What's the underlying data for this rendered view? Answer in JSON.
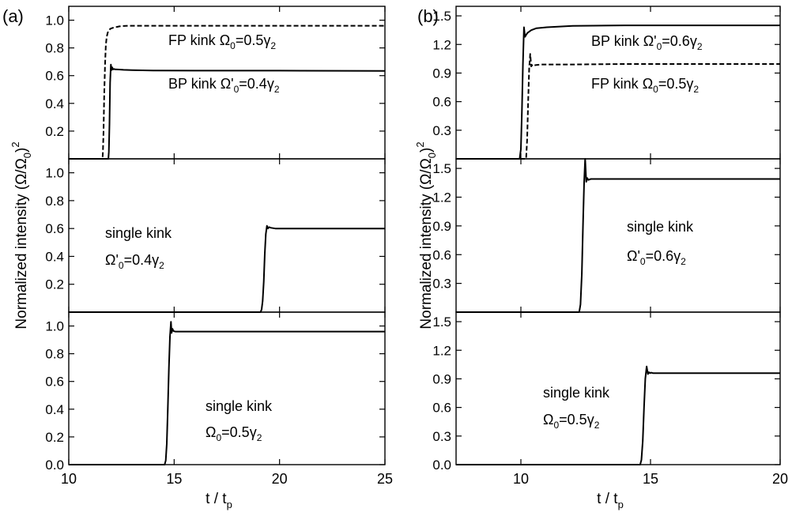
{
  "chart_data": [
    {
      "panel_label": "(a)",
      "type": "line",
      "xlabel": "t / t",
      "xlabel_sub": "p",
      "ylabel": "Normalized intensity (Ω/Ω",
      "ylabel_sub": "0",
      "ylabel_tail": ")",
      "ylabel_sup": "2",
      "xlim": [
        10,
        25
      ],
      "xticks": [
        "10",
        "15",
        "20",
        "25"
      ],
      "subplots": [
        {
          "ylim": [
            0,
            1.1
          ],
          "yticks": [
            "0.2",
            "0.4",
            "0.6",
            "0.8",
            "1.0"
          ],
          "annotations": [
            {
              "base": "FP kink Ω",
              "sub": "0",
              "rest": "=0.5γ",
              "sub2": "2"
            },
            {
              "base": "BP kink Ω'",
              "sub": "0",
              "rest": "=0.4γ",
              "sub2": "2"
            }
          ],
          "series": [
            {
              "style": "dash",
              "x": [
                10,
                11.6,
                11.62,
                11.65,
                11.68,
                11.72,
                11.76,
                11.8,
                11.85,
                11.9,
                11.95,
                12.0,
                12.1,
                12.2,
                12.3,
                12.4,
                12.6,
                12.8,
                13.0,
                14.0,
                25
              ],
              "y": [
                0,
                0,
                0.05,
                0.2,
                0.45,
                0.68,
                0.82,
                0.88,
                0.91,
                0.925,
                0.935,
                0.94,
                0.945,
                0.95,
                0.952,
                0.955,
                0.958,
                0.96,
                0.96,
                0.96,
                0.96
              ]
            },
            {
              "style": "solid",
              "x": [
                10,
                11.88,
                11.9,
                11.93,
                11.96,
                12.0,
                12.03,
                12.06,
                12.1,
                12.15,
                12.2,
                12.4,
                12.6,
                13.0,
                14.0,
                16.0,
                20.0,
                25
              ],
              "y": [
                0,
                0,
                0.05,
                0.25,
                0.55,
                0.68,
                0.64,
                0.66,
                0.645,
                0.648,
                0.645,
                0.644,
                0.642,
                0.64,
                0.637,
                0.636,
                0.636,
                0.634
              ]
            }
          ]
        },
        {
          "ylim": [
            0,
            1.1
          ],
          "yticks": [
            "0.2",
            "0.4",
            "0.6",
            "0.8",
            "1.0"
          ],
          "annotations": [
            {
              "base": "single kink"
            },
            {
              "base": "Ω'",
              "sub": "0",
              "rest": "=0.4γ",
              "sub2": "2"
            }
          ],
          "series": [
            {
              "style": "solid",
              "x": [
                10,
                19.1,
                19.15,
                19.2,
                19.25,
                19.3,
                19.35,
                19.4,
                19.45,
                19.5,
                19.6,
                19.8,
                20.0,
                22.0,
                25
              ],
              "y": [
                0,
                0,
                0.02,
                0.08,
                0.22,
                0.42,
                0.56,
                0.62,
                0.6,
                0.61,
                0.605,
                0.6,
                0.6,
                0.6,
                0.6
              ]
            }
          ]
        },
        {
          "ylim": [
            0,
            1.1
          ],
          "yticks": [
            "0.0",
            "0.2",
            "0.4",
            "0.6",
            "0.8",
            "1.0"
          ],
          "annotations": [
            {
              "base": "single kink"
            },
            {
              "base": "Ω",
              "sub": "0",
              "rest": "=0.5γ",
              "sub2": "2"
            }
          ],
          "series": [
            {
              "style": "solid",
              "x": [
                10,
                14.55,
                14.6,
                14.65,
                14.7,
                14.75,
                14.8,
                14.85,
                14.88,
                14.92,
                14.96,
                15.0,
                15.05,
                15.2,
                16.0,
                20.0,
                25
              ],
              "y": [
                0,
                0,
                0.03,
                0.15,
                0.4,
                0.7,
                0.92,
                1.03,
                0.95,
                0.98,
                0.965,
                0.962,
                0.96,
                0.96,
                0.96,
                0.96,
                0.96
              ]
            }
          ]
        }
      ]
    },
    {
      "panel_label": "(b)",
      "type": "line",
      "xlabel": "t / t",
      "xlabel_sub": "p",
      "ylabel": "Normalized intensity (Ω/Ω",
      "ylabel_sub": "0",
      "ylabel_tail": ")",
      "ylabel_sup": "2",
      "xlim": [
        7.5,
        20
      ],
      "xticks": [
        "10",
        "15",
        "20"
      ],
      "subplots": [
        {
          "ylim": [
            0,
            1.6
          ],
          "yticks": [
            "0.3",
            "0.6",
            "0.9",
            "1.2",
            "1.5"
          ],
          "annotations": [
            {
              "base": "BP kink Ω'",
              "sub": "0",
              "rest": "=0.6γ",
              "sub2": "2"
            },
            {
              "base": "FP kink Ω",
              "sub": "0",
              "rest": "=0.5γ",
              "sub2": "2"
            }
          ],
          "series": [
            {
              "style": "solid",
              "x": [
                7.5,
                9.95,
                10.0,
                10.04,
                10.08,
                10.12,
                10.16,
                10.2,
                10.25,
                10.3,
                10.4,
                10.6,
                11.0,
                12.0,
                14.0,
                20
              ],
              "y": [
                0,
                0,
                0.1,
                0.5,
                1.0,
                1.38,
                1.28,
                1.3,
                1.32,
                1.33,
                1.35,
                1.37,
                1.38,
                1.395,
                1.4,
                1.4
              ]
            },
            {
              "style": "dash",
              "x": [
                7.5,
                10.2,
                10.24,
                10.28,
                10.32,
                10.36,
                10.4,
                10.45,
                10.5,
                10.6,
                10.8,
                11.0,
                12.0,
                14.0,
                20
              ],
              "y": [
                0,
                0,
                0.2,
                0.6,
                0.95,
                1.1,
                0.97,
                0.99,
                0.98,
                0.985,
                0.99,
                0.99,
                0.99,
                0.995,
                0.995
              ]
            }
          ]
        },
        {
          "ylim": [
            0,
            1.6
          ],
          "yticks": [
            "0.3",
            "0.6",
            "0.9",
            "1.2",
            "1.5"
          ],
          "annotations": [
            {
              "base": "single kink"
            },
            {
              "base": "Ω'",
              "sub": "0",
              "rest": "=0.6γ",
              "sub2": "2"
            }
          ],
          "series": [
            {
              "style": "solid",
              "x": [
                7.5,
                12.25,
                12.3,
                12.35,
                12.4,
                12.44,
                12.48,
                12.52,
                12.56,
                12.6,
                12.7,
                13.0,
                14.0,
                20
              ],
              "y": [
                0,
                0,
                0.08,
                0.4,
                0.95,
                1.35,
                1.6,
                1.36,
                1.4,
                1.38,
                1.39,
                1.39,
                1.39,
                1.39
              ]
            }
          ]
        },
        {
          "ylim": [
            0,
            1.6
          ],
          "yticks": [
            "0.0",
            "0.3",
            "0.6",
            "0.9",
            "1.2",
            "1.5"
          ],
          "annotations": [
            {
              "base": "single kink"
            },
            {
              "base": "Ω",
              "sub": "0",
              "rest": "=0.5γ",
              "sub2": "2"
            }
          ],
          "series": [
            {
              "style": "solid",
              "x": [
                7.5,
                14.6,
                14.65,
                14.7,
                14.75,
                14.8,
                14.85,
                14.9,
                14.94,
                14.98,
                15.02,
                15.1,
                15.3,
                16.0,
                20
              ],
              "y": [
                0,
                0,
                0.05,
                0.25,
                0.6,
                0.9,
                1.03,
                0.95,
                0.97,
                0.96,
                0.965,
                0.96,
                0.96,
                0.96,
                0.96
              ]
            }
          ]
        }
      ]
    }
  ]
}
